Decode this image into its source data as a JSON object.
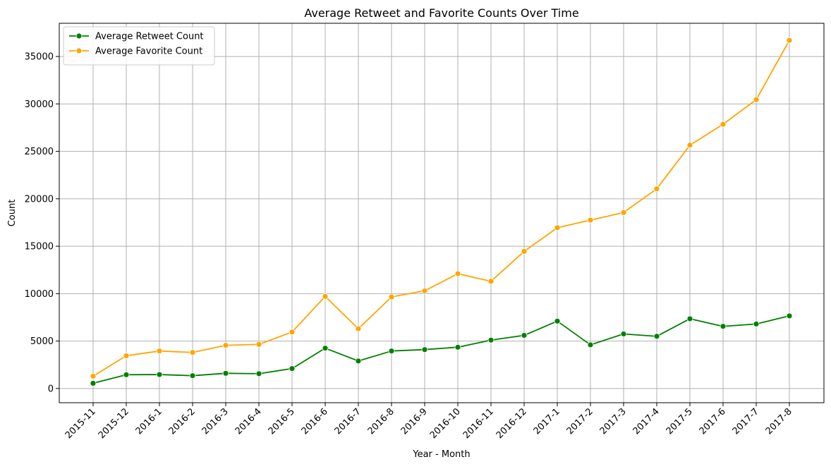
{
  "chart_data": {
    "type": "line",
    "title": "Average Retweet and Favorite Counts Over Time",
    "xlabel": "Year - Month",
    "ylabel": "Count",
    "categories": [
      "2015-11",
      "2015-12",
      "2016-1",
      "2016-2",
      "2016-3",
      "2016-4",
      "2016-5",
      "2016-6",
      "2016-7",
      "2016-8",
      "2016-9",
      "2016-10",
      "2016-11",
      "2016-12",
      "2017-1",
      "2017-2",
      "2017-3",
      "2017-4",
      "2017-5",
      "2017-6",
      "2017-7",
      "2017-8"
    ],
    "yticks": [
      0,
      5000,
      10000,
      15000,
      20000,
      25000,
      30000,
      35000
    ],
    "ylim": [
      -1500,
      38500
    ],
    "grid": true,
    "legend_position": "top-left",
    "x_tick_rotation": 45,
    "series": [
      {
        "name": "Average Retweet Count",
        "color": "#008000",
        "marker": "circle",
        "values": [
          550,
          1450,
          1470,
          1350,
          1600,
          1560,
          2100,
          4250,
          2900,
          3950,
          4100,
          4350,
          5100,
          5600,
          7100,
          4600,
          5750,
          5500,
          7350,
          6550,
          6800,
          7650
        ]
      },
      {
        "name": "Average Favorite Count",
        "color": "#FFA500",
        "marker": "circle",
        "values": [
          1300,
          3450,
          3950,
          3800,
          4550,
          4650,
          5950,
          9700,
          6300,
          9650,
          10300,
          12100,
          11300,
          14450,
          16950,
          17750,
          18550,
          21050,
          25650,
          27850,
          30450,
          36700
        ]
      }
    ]
  }
}
